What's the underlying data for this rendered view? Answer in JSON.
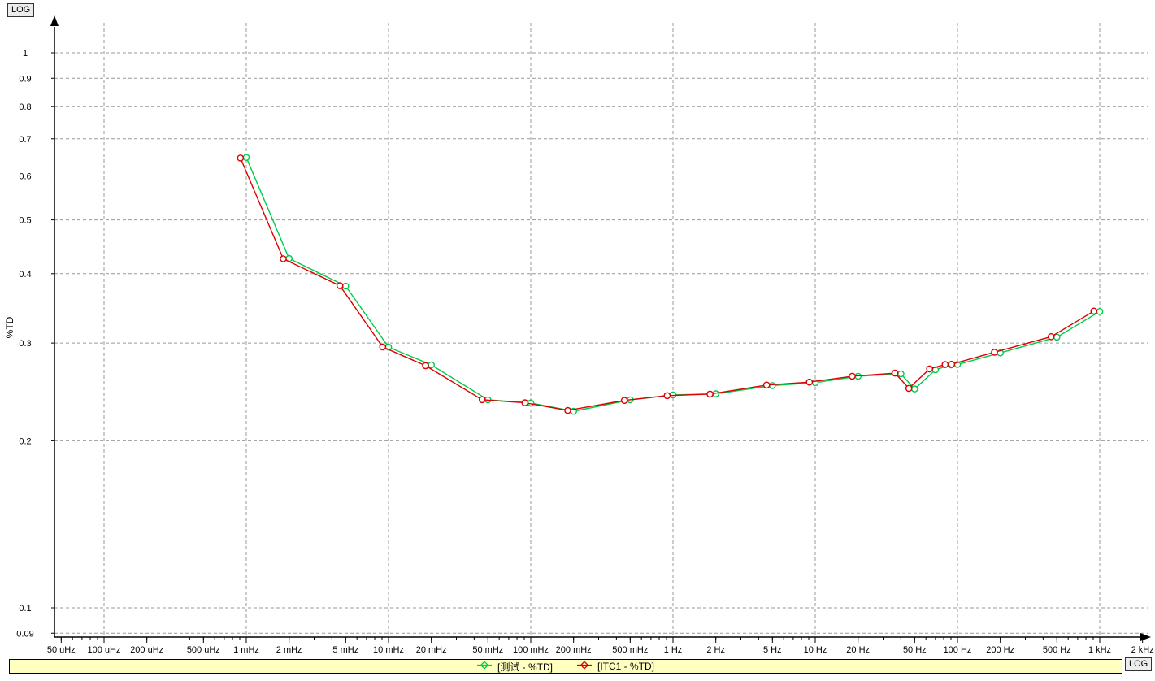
{
  "corner_labels": {
    "top_left": "LOG",
    "bottom_right": "LOG"
  },
  "legend": {
    "background": "#FFFFC0",
    "items": [
      {
        "label": "[测试 - %TD]",
        "color": "#00CC4C"
      },
      {
        "label": "[ITC1 - %TD]",
        "color": "#DD0000"
      }
    ]
  },
  "chart_data": {
    "type": "line",
    "title": "",
    "xlabel": "",
    "ylabel": "%TD",
    "x_scale": "log",
    "y_scale": "log",
    "grid": "dashed",
    "legend_position": "bottom",
    "x_axis": {
      "range_hz": [
        5e-05,
        2000
      ],
      "gridlines_hz": [
        0.0001,
        0.001,
        0.01,
        0.1,
        1,
        10,
        100,
        1000
      ],
      "ticks": [
        {
          "hz": 5e-05,
          "label": "50 uHz"
        },
        {
          "hz": 0.0001,
          "label": "100 uHz"
        },
        {
          "hz": 0.0002,
          "label": "200 uHz"
        },
        {
          "hz": 0.0005,
          "label": "500 uHz"
        },
        {
          "hz": 0.001,
          "label": "1 mHz"
        },
        {
          "hz": 0.002,
          "label": "2 mHz"
        },
        {
          "hz": 0.005,
          "label": "5 mHz"
        },
        {
          "hz": 0.01,
          "label": "10 mHz"
        },
        {
          "hz": 0.02,
          "label": "20 mHz"
        },
        {
          "hz": 0.05,
          "label": "50 mHz"
        },
        {
          "hz": 0.1,
          "label": "100 mHz"
        },
        {
          "hz": 0.2,
          "label": "200 mHz"
        },
        {
          "hz": 0.5,
          "label": "500 mHz"
        },
        {
          "hz": 1,
          "label": "1 Hz"
        },
        {
          "hz": 2,
          "label": "2 Hz"
        },
        {
          "hz": 5,
          "label": "5 Hz"
        },
        {
          "hz": 10,
          "label": "10 Hz"
        },
        {
          "hz": 20,
          "label": "20 Hz"
        },
        {
          "hz": 50,
          "label": "50 Hz"
        },
        {
          "hz": 100,
          "label": "100 Hz"
        },
        {
          "hz": 200,
          "label": "200 Hz"
        },
        {
          "hz": 500,
          "label": "500 Hz"
        },
        {
          "hz": 1000,
          "label": "1 kHz"
        },
        {
          "hz": 2000,
          "label": "2 kHz"
        }
      ]
    },
    "y_axis": {
      "range": [
        0.09,
        1.1
      ],
      "ticks": [
        {
          "v": 1,
          "label": "1"
        },
        {
          "v": 0.9,
          "label": "0.9"
        },
        {
          "v": 0.8,
          "label": "0.8"
        },
        {
          "v": 0.7,
          "label": "0.7"
        },
        {
          "v": 0.6,
          "label": "0.6"
        },
        {
          "v": 0.5,
          "label": "0.5"
        },
        {
          "v": 0.4,
          "label": "0.4"
        },
        {
          "v": 0.3,
          "label": "0.3"
        },
        {
          "v": 0.2,
          "label": "0.2"
        },
        {
          "v": 0.1,
          "label": "0.1"
        },
        {
          "v": 0.09,
          "label": "0.09"
        }
      ]
    },
    "series": [
      {
        "name": "测试 - %TD",
        "color": "#00CC4C",
        "marker": "open-circle",
        "freq_scale": 1.0,
        "points": [
          [
            0.001,
            0.648
          ],
          [
            0.002,
            0.426
          ],
          [
            0.005,
            0.38
          ],
          [
            0.01,
            0.295
          ],
          [
            0.02,
            0.274
          ],
          [
            0.05,
            0.237
          ],
          [
            0.1,
            0.234
          ],
          [
            0.2,
            0.226
          ],
          [
            0.5,
            0.237
          ],
          [
            1,
            0.242
          ],
          [
            2,
            0.243
          ],
          [
            5,
            0.2515
          ],
          [
            10,
            0.2545
          ],
          [
            20,
            0.2615
          ],
          [
            40,
            0.264
          ],
          [
            50,
            0.248
          ],
          [
            70,
            0.2685
          ],
          [
            90,
            0.274
          ],
          [
            100,
            0.2745
          ],
          [
            200,
            0.288
          ],
          [
            500,
            0.3075
          ],
          [
            1000,
            0.342
          ]
        ]
      },
      {
        "name": "ITC1 - %TD",
        "color": "#DD0000",
        "marker": "open-circle",
        "freq_scale": 0.91,
        "points": [
          [
            0.001,
            0.6465
          ],
          [
            0.002,
            0.4255
          ],
          [
            0.005,
            0.3805
          ],
          [
            0.01,
            0.2952
          ],
          [
            0.02,
            0.2732
          ],
          [
            0.05,
            0.2372
          ],
          [
            0.1,
            0.2342
          ],
          [
            0.2,
            0.2268
          ],
          [
            0.5,
            0.2365
          ],
          [
            1,
            0.2412
          ],
          [
            2,
            0.2428
          ],
          [
            5,
            0.252
          ],
          [
            10,
            0.2551
          ],
          [
            20,
            0.2615
          ],
          [
            40,
            0.2648
          ],
          [
            50,
            0.2486
          ],
          [
            70,
            0.2695
          ],
          [
            90,
            0.2744
          ],
          [
            100,
            0.2748
          ],
          [
            200,
            0.2888
          ],
          [
            500,
            0.308
          ],
          [
            1000,
            0.3425
          ]
        ]
      }
    ]
  }
}
